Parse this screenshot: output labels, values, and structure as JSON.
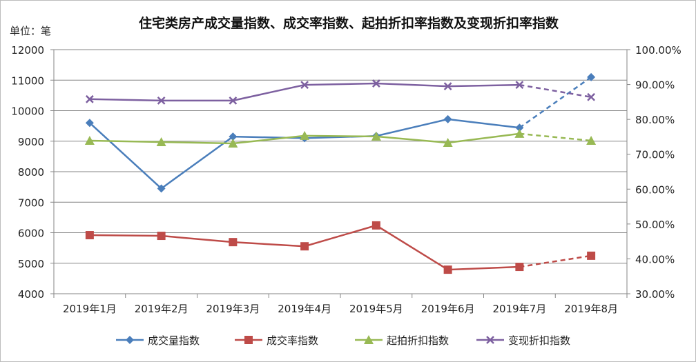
{
  "chart_data": {
    "type": "line",
    "title": "住宅类房产成交量指数、成交率指数、起拍折扣率指数及变现折扣率指数",
    "unit_label": "单位：笔",
    "categories": [
      "2019年1月",
      "2019年2月",
      "2019年3月",
      "2019年4月",
      "2019年5月",
      "2019年6月",
      "2019年7月",
      "2019年8月"
    ],
    "y_left": {
      "range": [
        4000,
        12000
      ],
      "ticks": [
        "12000",
        "11000",
        "10000",
        "9000",
        "8000",
        "7000",
        "6000",
        "5000",
        "4000"
      ]
    },
    "y_right": {
      "range": [
        30,
        100
      ],
      "ticks": [
        "100.00%",
        "90.00%",
        "80.00%",
        "70.00%",
        "60.00%",
        "50.00%",
        "40.00%",
        "30.00%"
      ]
    },
    "grid": true,
    "legend_position": "bottom",
    "last_segment_dashed": true,
    "series": [
      {
        "name": "成交量指数",
        "axis": "left",
        "color": "#4a7ebb",
        "marker": "diamond",
        "values": [
          9600,
          7450,
          9150,
          9100,
          9170,
          9720,
          9440,
          11100
        ]
      },
      {
        "name": "成交率指数",
        "axis": "right",
        "color": "#be4b48",
        "marker": "square",
        "values": [
          46.8,
          46.6,
          44.8,
          43.6,
          49.6,
          36.9,
          37.7,
          40.9
        ]
      },
      {
        "name": "起拍折扣指数",
        "axis": "right",
        "color": "#98b954",
        "marker": "triangle",
        "values": [
          73.9,
          73.5,
          73.1,
          75.3,
          75.1,
          73.3,
          75.9,
          73.9
        ]
      },
      {
        "name": "变现折扣指数",
        "axis": "right",
        "color": "#7d60a0",
        "marker": "x",
        "values": [
          85.8,
          85.4,
          85.4,
          89.9,
          90.3,
          89.5,
          89.9,
          86.4
        ]
      }
    ]
  }
}
